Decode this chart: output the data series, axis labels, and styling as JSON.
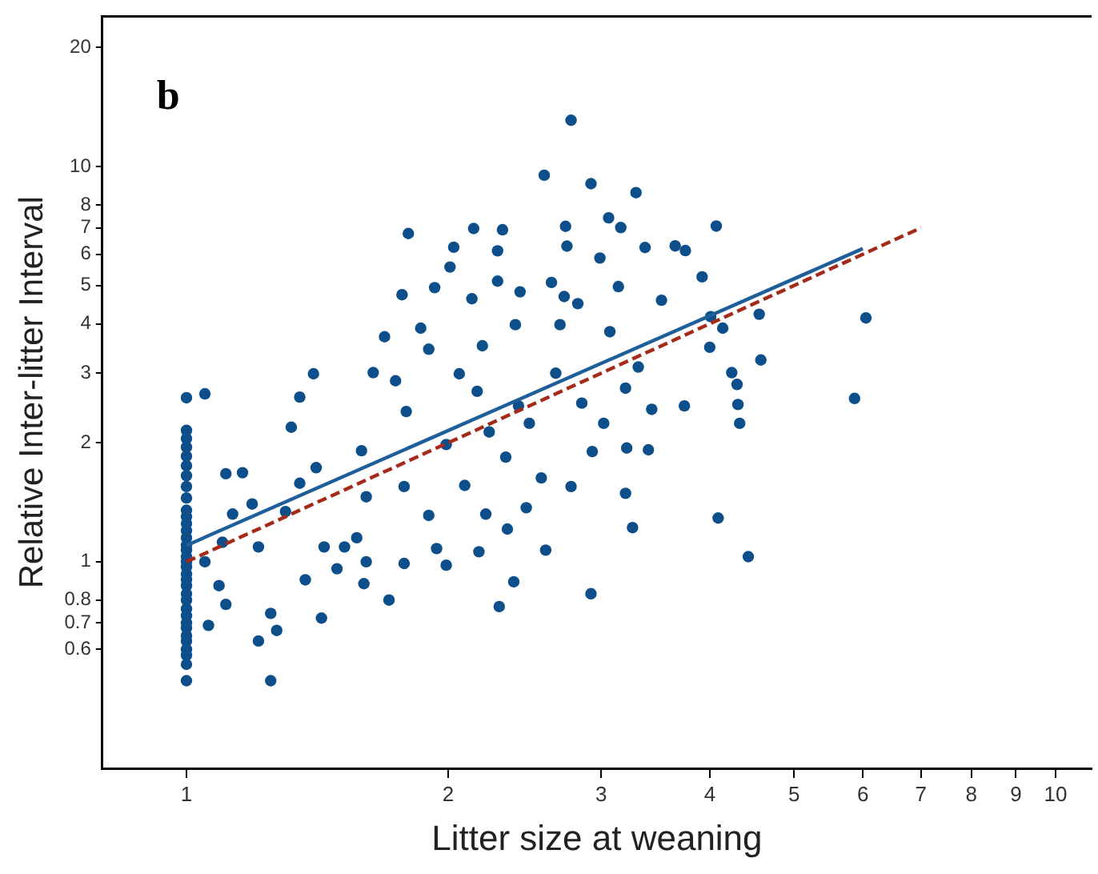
{
  "chart_data": {
    "type": "scatter",
    "title": "b",
    "xlabel": "Litter size at weaning",
    "ylabel": "Relative Inter-litter Interval",
    "log": "xy",
    "xlim": [
      0.8,
      11
    ],
    "ylim": [
      0.3,
      24
    ],
    "xticks": [
      1,
      2,
      3,
      4,
      5,
      6,
      7,
      8,
      9,
      10
    ],
    "yticks": [
      0.6,
      0.7,
      0.8,
      1,
      2,
      3,
      4,
      5,
      6,
      7,
      8,
      10,
      20
    ],
    "grid": false,
    "legend": false,
    "marker": "circle",
    "series": [
      {
        "type": "scatter",
        "color": "#0d4f8b",
        "x": [
          1,
          1,
          1,
          1,
          1,
          1,
          1,
          1,
          1,
          1,
          1,
          1,
          1,
          1,
          1,
          1,
          1,
          1,
          1,
          1,
          1,
          1,
          1,
          1,
          1,
          1,
          1,
          1,
          1,
          1,
          1,
          1,
          1,
          1,
          1.05,
          1.11,
          1.16,
          1.13,
          1.1,
          1.05,
          1.09,
          1.11,
          1.06,
          1.19,
          1.21,
          1.21,
          1.25,
          1.25,
          1.27,
          1.3,
          1.32,
          1.35,
          1.4,
          1.37,
          1.43,
          1.41,
          1.35,
          1.44,
          1.49,
          1.52,
          1.57,
          1.59,
          1.61,
          1.6,
          1.61,
          1.64,
          1.69,
          1.71,
          1.74,
          1.77,
          1.79,
          1.8,
          1.78,
          1.78,
          1.86,
          1.9,
          1.93,
          1.9,
          1.94,
          1.99,
          1.99,
          2.03,
          2.01,
          2.06,
          2.09,
          2.14,
          2.13,
          2.16,
          2.17,
          2.19,
          2.21,
          2.23,
          2.28,
          2.29,
          2.31,
          2.28,
          2.33,
          2.34,
          2.38,
          2.39,
          2.41,
          2.42,
          2.46,
          2.48,
          2.58,
          2.56,
          2.59,
          2.63,
          2.66,
          2.69,
          2.72,
          2.73,
          2.74,
          2.77,
          2.77,
          2.82,
          2.85,
          2.92,
          2.92,
          2.93,
          2.99,
          3.02,
          3.06,
          3.07,
          3.14,
          3.16,
          3.2,
          3.2,
          3.21,
          3.26,
          3.29,
          3.31,
          3.37,
          3.4,
          3.43,
          3.52,
          3.65,
          3.74,
          3.75,
          3.92,
          4.0,
          4.01,
          4.07,
          4.09,
          4.14,
          4.24,
          4.3,
          4.31,
          4.33,
          4.43,
          4.56,
          4.58,
          5.87,
          6.05
        ],
        "values": [
          0.5,
          0.55,
          0.58,
          0.6,
          0.63,
          0.65,
          0.68,
          0.7,
          0.73,
          0.76,
          0.8,
          0.83,
          0.87,
          0.9,
          0.93,
          0.97,
          1.0,
          1.03,
          1.07,
          1.1,
          1.15,
          1.2,
          1.25,
          1.3,
          1.35,
          1.45,
          1.55,
          1.65,
          1.75,
          1.85,
          1.95,
          2.05,
          2.15,
          2.6,
          2.66,
          1.67,
          1.68,
          1.32,
          1.12,
          1.0,
          0.87,
          0.78,
          0.69,
          1.4,
          1.09,
          0.63,
          0.5,
          0.74,
          0.67,
          1.34,
          2.19,
          2.61,
          2.99,
          0.9,
          0.72,
          1.73,
          1.58,
          1.09,
          0.96,
          1.09,
          1.15,
          1.91,
          1.46,
          0.88,
          1.0,
          3.01,
          3.71,
          0.8,
          2.87,
          4.74,
          2.4,
          6.77,
          1.55,
          0.99,
          3.9,
          1.31,
          4.94,
          3.45,
          1.08,
          1.98,
          0.98,
          6.25,
          5.57,
          2.99,
          1.56,
          6.97,
          4.63,
          2.7,
          1.06,
          3.52,
          1.32,
          2.13,
          5.13,
          0.77,
          6.92,
          6.12,
          1.84,
          1.21,
          0.89,
          3.98,
          2.48,
          4.82,
          1.37,
          2.24,
          9.51,
          1.63,
          1.07,
          5.09,
          3.0,
          3.98,
          4.69,
          7.06,
          6.29,
          13.1,
          1.55,
          4.5,
          2.52,
          9.05,
          0.83,
          1.9,
          5.87,
          2.24,
          7.42,
          3.82,
          4.97,
          7.01,
          2.75,
          1.49,
          1.94,
          1.22,
          8.59,
          3.11,
          6.24,
          1.92,
          2.43,
          4.59,
          6.3,
          2.48,
          6.13,
          5.26,
          3.49,
          4.17,
          7.07,
          1.29,
          3.9,
          3.01,
          2.81,
          2.5,
          2.24,
          1.03,
          4.23,
          3.24,
          2.59,
          4.14
        ]
      },
      {
        "type": "line",
        "color": "#1f5f99",
        "line_style": "solid",
        "marker": "none",
        "x": [
          1,
          6
        ],
        "values": [
          1.1,
          6.2
        ]
      },
      {
        "type": "line",
        "color": "#a52a1a",
        "line_style": "dashed",
        "marker": "none",
        "x": [
          1,
          7
        ],
        "values": [
          1,
          7
        ]
      }
    ]
  }
}
